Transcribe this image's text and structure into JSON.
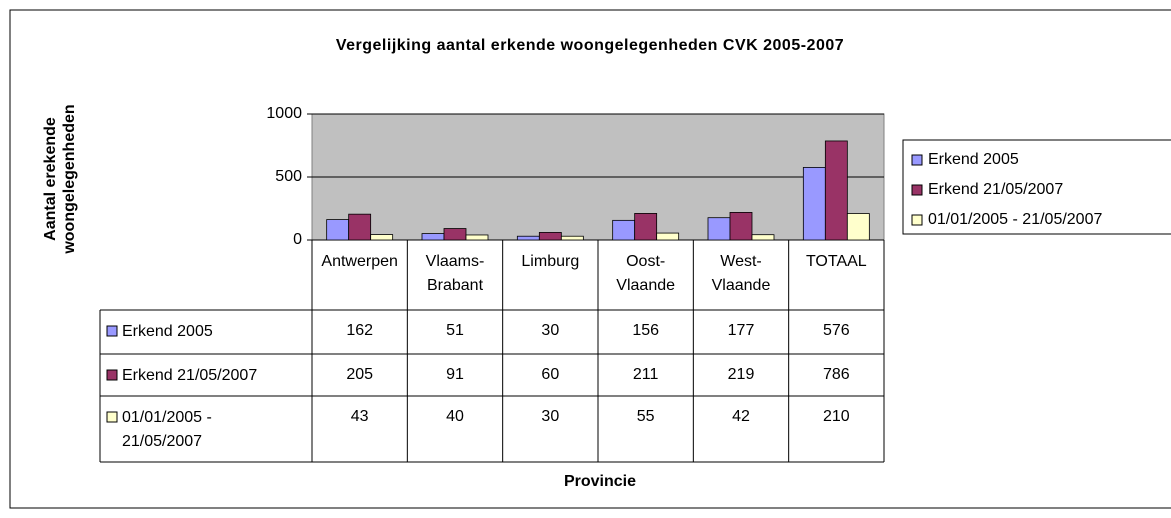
{
  "chart_data": {
    "type": "bar",
    "title": "Vergelijking  aantal erkende woongelegenheden CVK 2005-2007",
    "y_label": "Aantal erekende woongelegenheden",
    "x_label": "Provincie",
    "categories": [
      "Antwerpen",
      "Vlaams-Brabant",
      "Limburg",
      "Oost-Vlaande",
      "West-Vlaande",
      "TOTAAL"
    ],
    "series": [
      {
        "name": "Erkend 2005",
        "color": "#9999ff",
        "values": [
          162,
          51,
          30,
          156,
          177,
          576
        ]
      },
      {
        "name": "Erkend 21/05/2007",
        "color": "#993366",
        "values": [
          205,
          91,
          60,
          211,
          219,
          786
        ]
      },
      {
        "name": "01/01/2005 - 21/05/2007",
        "color": "#ffffcc",
        "values": [
          43,
          40,
          30,
          55,
          42,
          210
        ]
      }
    ],
    "ylim": [
      0,
      1000
    ],
    "yticks": [
      0,
      500,
      1000
    ],
    "grid": true,
    "legend": "right",
    "data_table": true
  }
}
